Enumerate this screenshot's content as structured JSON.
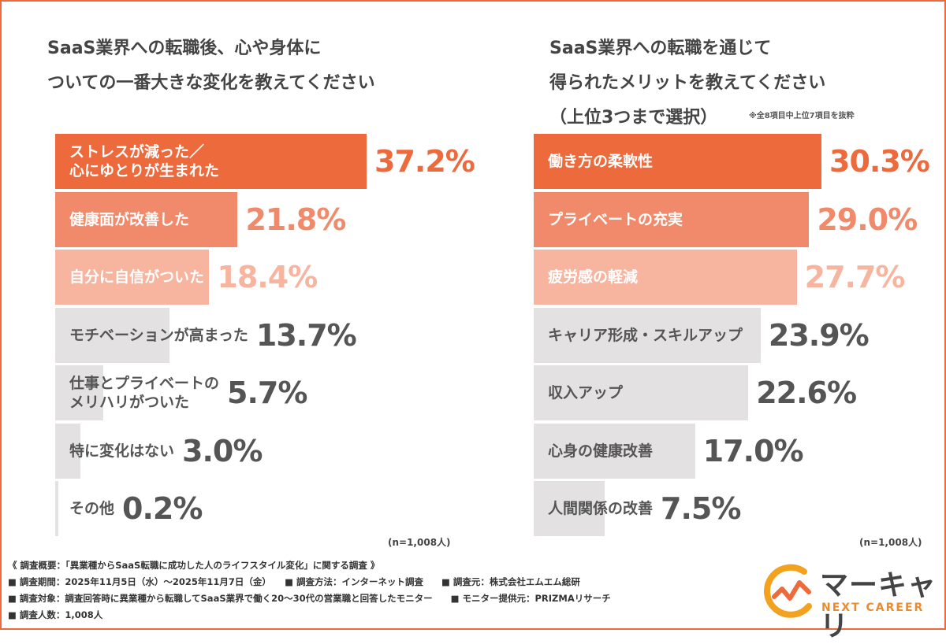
{
  "colors": {
    "accent": "#ec6a3c",
    "mid": "#f08a6a",
    "light": "#f7b5a0",
    "gray": "#e3e1e1"
  },
  "left": {
    "title": "SaaS業界への転職後、心や身体に\nついての一番大きな変化を教えてください",
    "n_label": "(n=1,008人)"
  },
  "right": {
    "title": "SaaS業界への転職を通じて\n得られたメリットを教えてください\n（上位3つまで選択）",
    "note": "※全8項目中上位7項目を抜粋",
    "n_label": "(n=1,008人)"
  },
  "chart_data": [
    {
      "type": "bar",
      "orientation": "horizontal",
      "title": "SaaS業界への転職後、心や身体についての一番大きな変化を教えてください",
      "categories": [
        "ストレスが減った／\n心にゆとりが生まれた",
        "健康面が改善した",
        "自分に自信がついた",
        "モチベーションが高まった",
        "仕事とプライベートの\nメリハリがついた",
        "特に変化はない",
        "その他"
      ],
      "values": [
        37.2,
        21.8,
        18.4,
        13.7,
        5.7,
        3.0,
        0.2
      ],
      "labels": [
        "37.2%",
        "21.8%",
        "18.4%",
        "13.7%",
        "5.7%",
        "3.0%",
        "0.2%"
      ],
      "unit": "%",
      "xlim": [
        0,
        37.2
      ]
    },
    {
      "type": "bar",
      "orientation": "horizontal",
      "title": "SaaS業界への転職を通じて得られたメリットを教えてください（上位3つまで選択）",
      "categories": [
        "働き方の柔軟性",
        "プライベートの充実",
        "疲労感の軽減",
        "キャリア形成・スキルアップ",
        "収入アップ",
        "心身の健康改善",
        "人間関係の改善"
      ],
      "values": [
        30.3,
        29.0,
        27.7,
        23.9,
        22.6,
        17.0,
        7.5
      ],
      "labels": [
        "30.3%",
        "29.0%",
        "27.7%",
        "23.9%",
        "22.6%",
        "17.0%",
        "7.5%"
      ],
      "unit": "%",
      "xlim": [
        0,
        30.3
      ]
    }
  ],
  "footer": {
    "lines": [
      "《 調査概要：「異業種からSaaS転職に成功した人のライフスタイル変化」に関する調査 》",
      "■ 調査期間：2025年11月5日（水）～2025年11月7日（金）　　■ 調査方法：インターネット調査　　■ 調査元：株式会社エムエム総研",
      "■ 調査対象：調査回答時に異業種から転職してSaaS業界で働く20～30代の営業職と回答したモニター　　■ モニター提供元：PRIZMAリサーチ",
      "■ 調査人数：1,008人"
    ]
  },
  "logo": {
    "name": "マーキャリ",
    "sub": "NEXT CAREER"
  }
}
